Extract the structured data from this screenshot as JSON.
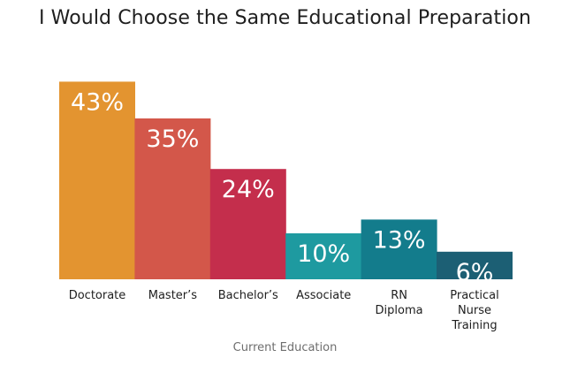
{
  "chart_data": {
    "type": "bar",
    "title": "I Would Choose the Same Educational Preparation",
    "xlabel": "Current Education",
    "ylabel": "",
    "ylim": [
      0,
      45
    ],
    "grid": false,
    "legend": "none",
    "categories": [
      "Doctorate",
      "Master’s",
      "Bachelor’s",
      "Associate",
      "RN Diploma",
      "Practical Nurse Training"
    ],
    "category_lines": [
      [
        "Doctorate"
      ],
      [
        "Master’s"
      ],
      [
        "Bachelor’s"
      ],
      [
        "Associate"
      ],
      [
        "RN",
        "Diploma"
      ],
      [
        "Practical",
        "Nurse",
        "Training"
      ]
    ],
    "values": [
      43,
      35,
      24,
      10,
      13,
      6
    ],
    "data_labels": [
      "43%",
      "35%",
      "24%",
      "10%",
      "13%",
      "6%"
    ],
    "colors": [
      "#e39430",
      "#d3574a",
      "#c42e4c",
      "#1e9aa0",
      "#137c8c",
      "#1c5f74"
    ]
  }
}
